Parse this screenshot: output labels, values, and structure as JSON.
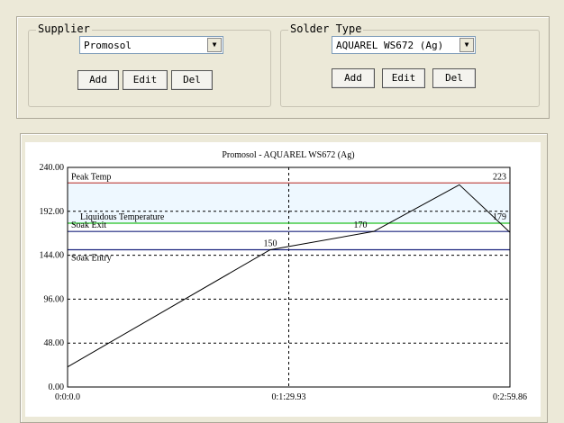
{
  "supplier": {
    "title": "Supplier",
    "selected": "Promosol",
    "buttons": [
      "Add",
      "Edit",
      "Del"
    ]
  },
  "solder_type": {
    "title": "Solder Type",
    "selected": "AQUAREL WS672 (Ag)",
    "buttons": [
      "Add",
      "Edit",
      "Del"
    ]
  },
  "chart_data": {
    "type": "line",
    "title": "Promosol - AQUAREL WS672 (Ag)",
    "x": [
      0,
      82.4,
      124.5,
      159.3,
      179.86
    ],
    "series": [
      {
        "color": "#000000",
        "values": [
          22,
          150,
          170,
          221,
          169
        ]
      }
    ],
    "xlim": [
      0,
      179.86
    ],
    "xticks": [
      {
        "value": 0,
        "label": "0:0:0.0"
      },
      {
        "value": 89.93,
        "label": "0:1:29.93"
      },
      {
        "value": 179.86,
        "label": "0:2:59.86"
      }
    ],
    "ylim": [
      0,
      240
    ],
    "yticks": [
      {
        "value": 0,
        "label": "0.00"
      },
      {
        "value": 48,
        "label": "48.00"
      },
      {
        "value": 96,
        "label": "96.00"
      },
      {
        "value": 144,
        "label": "144.00"
      },
      {
        "value": 192,
        "label": "192.00"
      },
      {
        "value": 240,
        "label": "240.00"
      }
    ],
    "grid": true,
    "reference_lines": [
      {
        "name": "Peak Temp",
        "value": 223,
        "color": "#c0504d"
      },
      {
        "name": "Liquidous Temperature",
        "value": 179,
        "color": "#22c022"
      },
      {
        "name": "Soak Exit",
        "value": 170,
        "color": "#1a237e"
      },
      {
        "name": "Soak Entry",
        "value": 150,
        "color": "#1a237e"
      }
    ]
  }
}
